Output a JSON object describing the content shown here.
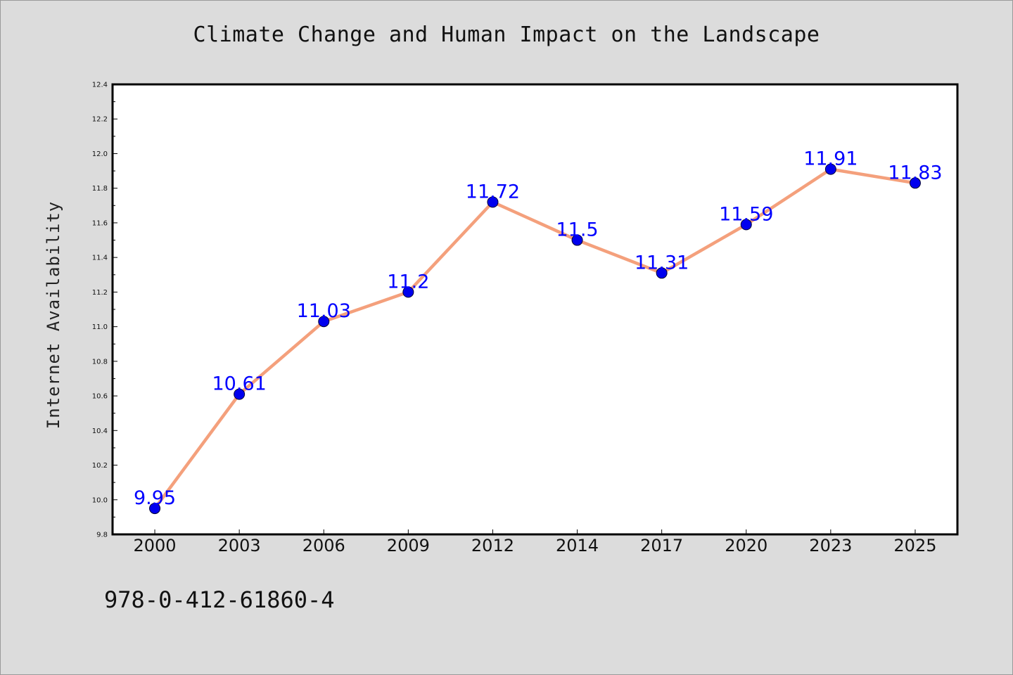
{
  "chart_data": {
    "type": "line",
    "title": "Climate Change and Human Impact on the Landscape",
    "xlabel": "",
    "ylabel": "Internet Availability",
    "categories": [
      "2000",
      "2003",
      "2006",
      "2009",
      "2012",
      "2014",
      "2017",
      "2020",
      "2023",
      "2025"
    ],
    "series": [
      {
        "values": [
          9.95,
          10.61,
          11.03,
          11.2,
          11.72,
          11.5,
          11.31,
          11.59,
          11.91,
          11.83
        ],
        "data_labels": [
          "9.95",
          "10.61",
          "11.03",
          "11.2",
          "11.72",
          "11.5",
          "11.31",
          "11.59",
          "11.91",
          "11.83"
        ]
      }
    ],
    "ylim": [
      9.8,
      12.4
    ],
    "yticks": [
      "9.8",
      "10.0",
      "10.2",
      "10.4",
      "10.6",
      "10.8",
      "11.0",
      "11.2",
      "11.4",
      "11.6",
      "11.8",
      "12.0",
      "12.2",
      "12.4"
    ],
    "grid": false,
    "legend": "none",
    "colors": {
      "line": "#f4a07c",
      "marker": "#0000ee",
      "label": "#0000ff",
      "plot_background": "#ffffff",
      "page_background": "#dcdcdc"
    }
  },
  "footer": {
    "isbn": "978-0-412-61860-4"
  }
}
